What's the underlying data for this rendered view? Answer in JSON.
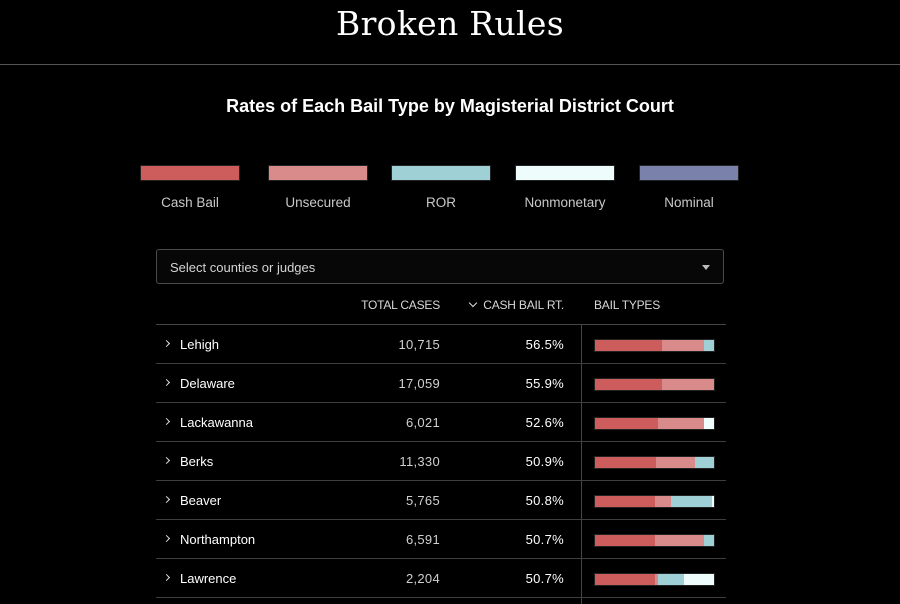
{
  "site": {
    "title": "Broken Rules"
  },
  "chart": {
    "title": "Rates of Each Bail Type by Magisterial District Court"
  },
  "colors": {
    "cash": "#cd5c5c",
    "unsecured": "#d98b8b",
    "ror": "#9fd0d6",
    "nonmonetary": "#eefcfc",
    "nominal": "#7a82ab"
  },
  "legend": [
    {
      "key": "cash",
      "label": "Cash Bail",
      "color": "#cd5c5c"
    },
    {
      "key": "unsecured",
      "label": "Unsecured",
      "color": "#d98b8b"
    },
    {
      "key": "ror",
      "label": "ROR",
      "color": "#9fd0d6"
    },
    {
      "key": "nonmonetary",
      "label": "Nonmonetary",
      "color": "#eefcfc"
    },
    {
      "key": "nominal",
      "label": "Nominal",
      "color": "#7a82ab"
    }
  ],
  "filter": {
    "placeholder": "Select counties or judges",
    "icon": "caret-down-icon"
  },
  "table": {
    "headers": {
      "total_cases": "TOTAL CASES",
      "cash_bail_rate": "CASH BAIL RT.",
      "bail_types": "BAIL TYPES"
    },
    "sort": {
      "column": "cash_bail_rate",
      "direction": "descending",
      "icon": "chevron-down-icon"
    },
    "rows": [
      {
        "name": "Lehigh",
        "total_cases": "10,715",
        "cash_bail_rate": "56.5%",
        "shares": {
          "cash": 0.565,
          "unsecured": 0.355,
          "ror": 0.08,
          "nonmonetary": 0.0,
          "nominal": 0.0
        }
      },
      {
        "name": "Delaware",
        "total_cases": "17,059",
        "cash_bail_rate": "55.9%",
        "shares": {
          "cash": 0.559,
          "unsecured": 0.441,
          "ror": 0.0,
          "nonmonetary": 0.0,
          "nominal": 0.0
        }
      },
      {
        "name": "Lackawanna",
        "total_cases": "6,021",
        "cash_bail_rate": "52.6%",
        "shares": {
          "cash": 0.526,
          "unsecured": 0.394,
          "ror": 0.0,
          "nonmonetary": 0.08,
          "nominal": 0.0
        }
      },
      {
        "name": "Berks",
        "total_cases": "11,330",
        "cash_bail_rate": "50.9%",
        "shares": {
          "cash": 0.509,
          "unsecured": 0.331,
          "ror": 0.16,
          "nonmonetary": 0.0,
          "nominal": 0.0
        }
      },
      {
        "name": "Beaver",
        "total_cases": "5,765",
        "cash_bail_rate": "50.8%",
        "shares": {
          "cash": 0.508,
          "unsecured": 0.132,
          "ror": 0.34,
          "nonmonetary": 0.02,
          "nominal": 0.0
        }
      },
      {
        "name": "Northampton",
        "total_cases": "6,591",
        "cash_bail_rate": "50.7%",
        "shares": {
          "cash": 0.507,
          "unsecured": 0.413,
          "ror": 0.08,
          "nonmonetary": 0.0,
          "nominal": 0.0
        }
      },
      {
        "name": "Lawrence",
        "total_cases": "2,204",
        "cash_bail_rate": "50.7%",
        "shares": {
          "cash": 0.507,
          "unsecured": 0.023,
          "ror": 0.22,
          "nonmonetary": 0.25,
          "nominal": 0.0
        }
      }
    ]
  }
}
